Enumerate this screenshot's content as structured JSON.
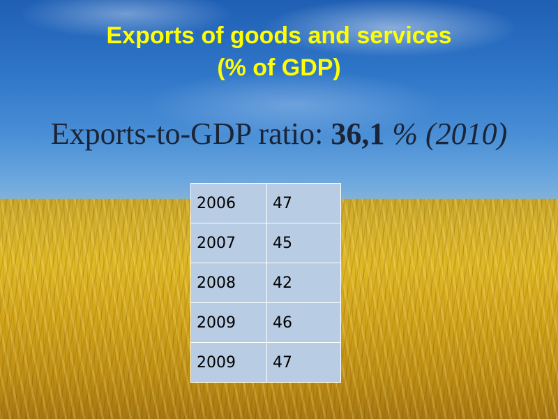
{
  "slide": {
    "title_line1": "Exports of goods and services",
    "title_line2": "(% of GDP)",
    "subtitle_label": "Exports-to-GDP ratio:",
    "subtitle_value": "36,1",
    "subtitle_year": "% (2010)"
  },
  "table": {
    "rows": [
      {
        "year": "2006",
        "value": "47"
      },
      {
        "year": "2007",
        "value": "45"
      },
      {
        "year": "2008",
        "value": "42"
      },
      {
        "year": "2009",
        "value": "46"
      },
      {
        "year": "2009",
        "value": "47"
      }
    ]
  },
  "colors": {
    "title": "#ffff00",
    "table_cell": "#b8cce4",
    "sky": "#2f76c8",
    "field": "#e0b926"
  }
}
